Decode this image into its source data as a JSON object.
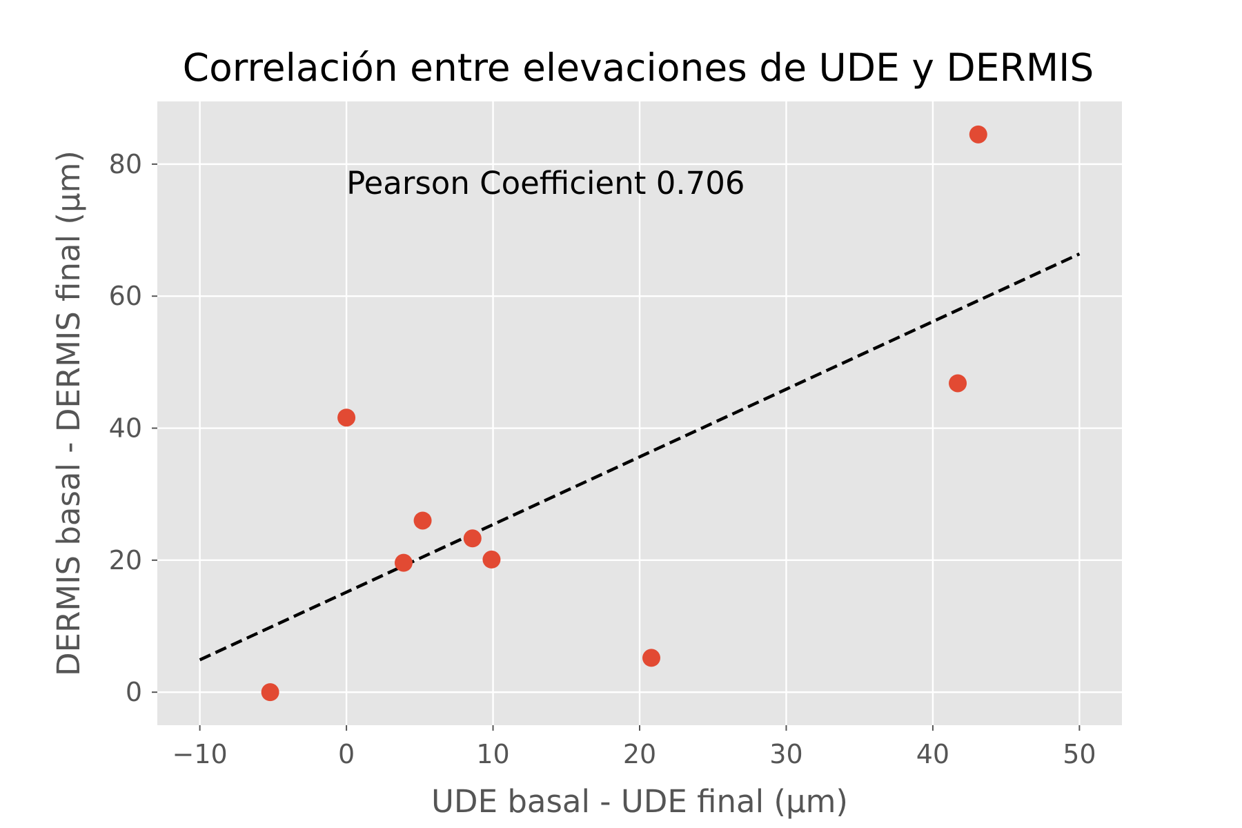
{
  "chart_data": {
    "type": "scatter",
    "title": "Correlación entre elevaciones de UDE y DERMIS",
    "xlabel": "UDE basal - UDE final (µm)",
    "ylabel": "DERMIS basal - DERMIS final (µm)",
    "xlim": [
      -12.9,
      52.9
    ],
    "ylim": [
      -5,
      89.5
    ],
    "xticks": [
      -10,
      0,
      10,
      20,
      30,
      40,
      50
    ],
    "xtick_labels": [
      "−10",
      "0",
      "10",
      "20",
      "30",
      "40",
      "50"
    ],
    "yticks": [
      0,
      20,
      40,
      60,
      80
    ],
    "ytick_labels": [
      "0",
      "20",
      "40",
      "60",
      "80"
    ],
    "grid": true,
    "background": "#e5e5e5",
    "points": {
      "color": "#e24a33",
      "x": [
        -5.2,
        0.0,
        5.2,
        3.9,
        8.6,
        9.9,
        20.8,
        41.7,
        43.1
      ],
      "y": [
        0.0,
        41.6,
        26.0,
        19.6,
        23.3,
        20.1,
        5.2,
        46.8,
        84.5
      ]
    },
    "fit_line": {
      "style": "dashed",
      "color": "#000000",
      "x": [
        -10,
        50
      ],
      "y": [
        4.9,
        66.4
      ]
    },
    "annotation": {
      "text": "Pearson Coefficient 0.706",
      "x": 0,
      "y": 75.5
    }
  }
}
